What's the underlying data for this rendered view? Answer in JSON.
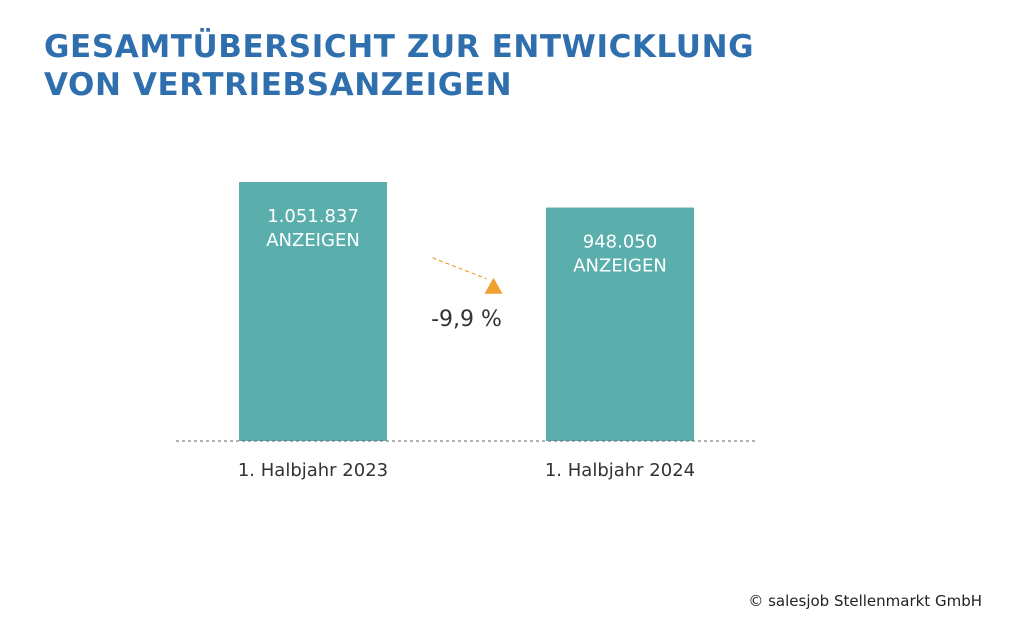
{
  "title_line_1": "GESAMTÜBERSICHT ZUR ENTWICKLUNG",
  "title_line_2": "VON VERTRIEBSANZEIGEN",
  "credit": "© salesjob Stellenmarkt GmbH",
  "colors": {
    "title": "#2f6fae",
    "bar": "#5aafad",
    "bar_text": "#ffffff",
    "arrow": "#f0a030",
    "baseline": "#666666",
    "axis_text": "#333333"
  },
  "chart_data": {
    "type": "bar",
    "title": "GESAMTÜBERSICHT ZUR ENTWICKLUNG VON VERTRIEBSANZEIGEN",
    "categories": [
      "1. Halbjahr 2023",
      "1. Halbjahr 2024"
    ],
    "values": [
      1051837,
      948050
    ],
    "data_labels": [
      [
        "1.051.837",
        "ANZEIGEN"
      ],
      [
        "948.050",
        "ANZEIGEN"
      ]
    ],
    "change_label": "-9,9 %",
    "ylim": [
      0,
      1051837
    ],
    "grid": false,
    "legend": false
  }
}
